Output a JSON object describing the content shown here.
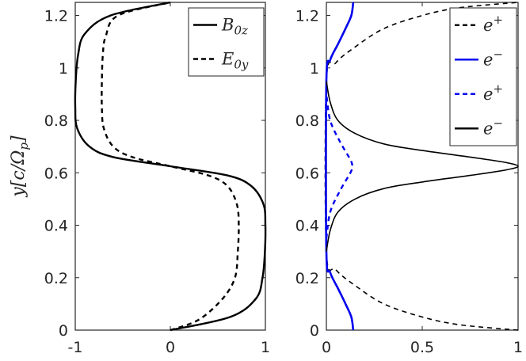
{
  "chart_data": [
    {
      "type": "line",
      "ylabel": "y[c/Ω_p]",
      "xlim": [
        -1,
        1
      ],
      "ylim": [
        0,
        1.25
      ],
      "x_ticks": [
        "-1",
        "0",
        "1"
      ],
      "y_ticks": [
        "0",
        "0.2",
        "0.4",
        "0.6",
        "0.8",
        "1",
        "1.2"
      ],
      "legend_position": "top-right",
      "grid": false,
      "series": [
        {
          "name": "B0z",
          "label_main": "B",
          "label_sub": "0z",
          "style": "solid",
          "color": "#000000",
          "points": [
            [
              0.0,
              0.0
            ],
            [
              0.63,
              0.05
            ],
            [
              0.9,
              0.12
            ],
            [
              0.97,
              0.2
            ],
            [
              0.995,
              0.3
            ],
            [
              1.0,
              0.4
            ],
            [
              0.98,
              0.48
            ],
            [
              0.85,
              0.55
            ],
            [
              0.6,
              0.59
            ],
            [
              0.0,
              0.625
            ],
            [
              -0.6,
              0.66
            ],
            [
              -0.85,
              0.7
            ],
            [
              -0.98,
              0.77
            ],
            [
              -1.0,
              0.85
            ],
            [
              -0.995,
              0.95
            ],
            [
              -0.97,
              1.05
            ],
            [
              -0.9,
              1.13
            ],
            [
              -0.63,
              1.2
            ],
            [
              0.0,
              1.25
            ]
          ]
        },
        {
          "name": "E0y",
          "label_main": "E",
          "label_sub": "0y",
          "style": "dashed",
          "color": "#000000",
          "points": [
            [
              0.0,
              0.0
            ],
            [
              0.3,
              0.04
            ],
            [
              0.55,
              0.12
            ],
            [
              0.68,
              0.2
            ],
            [
              0.71,
              0.3
            ],
            [
              0.72,
              0.4
            ],
            [
              0.7,
              0.48
            ],
            [
              0.6,
              0.55
            ],
            [
              0.4,
              0.59
            ],
            [
              0.0,
              0.625
            ],
            [
              -0.4,
              0.66
            ],
            [
              -0.6,
              0.7
            ],
            [
              -0.7,
              0.77
            ],
            [
              -0.72,
              0.85
            ],
            [
              -0.72,
              0.95
            ],
            [
              -0.71,
              1.05
            ],
            [
              -0.68,
              1.12
            ],
            [
              -0.55,
              1.2
            ],
            [
              0.0,
              1.25
            ]
          ]
        }
      ]
    },
    {
      "type": "line",
      "xlim": [
        0,
        1
      ],
      "ylim": [
        0,
        1.25
      ],
      "x_ticks": [
        "0",
        "0.5",
        "1"
      ],
      "y_ticks": [
        "0",
        "0.2",
        "0.4",
        "0.6",
        "0.8",
        "1",
        "1.2"
      ],
      "legend_position": "top-right",
      "grid": false,
      "series": [
        {
          "name": "e+",
          "label_main": "e",
          "label_sup": "+",
          "style": "dashed",
          "color": "#000000",
          "points": [
            [
              1.0,
              0.0
            ],
            [
              0.7,
              0.02
            ],
            [
              0.5,
              0.05
            ],
            [
              0.3,
              0.1
            ],
            [
              0.15,
              0.17
            ],
            [
              0.05,
              0.23
            ],
            [
              0.0,
              0.3
            ],
            [
              0.0,
              0.95
            ],
            [
              0.05,
              1.02
            ],
            [
              0.15,
              1.08
            ],
            [
              0.3,
              1.15
            ],
            [
              0.5,
              1.2
            ],
            [
              0.7,
              1.23
            ],
            [
              1.0,
              1.25
            ]
          ]
        },
        {
          "name": "e−",
          "label_main": "e",
          "label_sup": "−",
          "style": "solid",
          "color": "#0000ee",
          "points": [
            [
              0.14,
              0.0
            ],
            [
              0.13,
              0.05
            ],
            [
              0.1,
              0.1
            ],
            [
              0.06,
              0.16
            ],
            [
              0.02,
              0.22
            ],
            [
              0.0,
              0.3
            ],
            [
              0.0,
              0.95
            ],
            [
              0.02,
              1.03
            ],
            [
              0.06,
              1.09
            ],
            [
              0.1,
              1.15
            ],
            [
              0.13,
              1.2
            ],
            [
              0.14,
              1.25
            ]
          ]
        },
        {
          "name": "e+",
          "label_main": "e",
          "label_sup": "+",
          "style": "dashed",
          "color": "#0000ee",
          "points": [
            [
              0.0,
              0.35
            ],
            [
              0.02,
              0.45
            ],
            [
              0.07,
              0.53
            ],
            [
              0.125,
              0.6
            ],
            [
              0.135,
              0.625
            ],
            [
              0.125,
              0.65
            ],
            [
              0.07,
              0.72
            ],
            [
              0.02,
              0.8
            ],
            [
              0.0,
              0.9
            ]
          ]
        },
        {
          "name": "e−",
          "label_main": "e",
          "label_sup": "−",
          "style": "solid",
          "color": "#000000",
          "points": [
            [
              0.0,
              0.3
            ],
            [
              0.02,
              0.38
            ],
            [
              0.06,
              0.45
            ],
            [
              0.15,
              0.5
            ],
            [
              0.3,
              0.54
            ],
            [
              0.5,
              0.565
            ],
            [
              0.75,
              0.59
            ],
            [
              0.93,
              0.61
            ],
            [
              1.0,
              0.625
            ],
            [
              0.93,
              0.64
            ],
            [
              0.75,
              0.66
            ],
            [
              0.5,
              0.685
            ],
            [
              0.3,
              0.71
            ],
            [
              0.15,
              0.75
            ],
            [
              0.06,
              0.8
            ],
            [
              0.02,
              0.87
            ],
            [
              0.0,
              0.95
            ]
          ]
        }
      ]
    }
  ]
}
